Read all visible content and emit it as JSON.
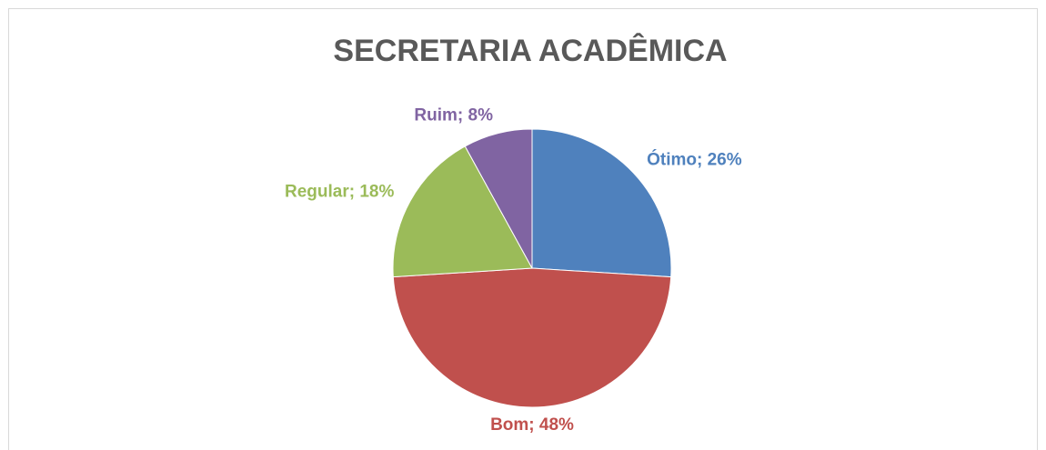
{
  "chart_data": {
    "type": "pie",
    "title": "SECRETARIA ACADÊMICA",
    "values": [
      26,
      48,
      18,
      8
    ],
    "value_labels": [
      "Ótimo; 26%",
      "Bom; 48%",
      "Regular; 18%",
      "Ruim; 8%"
    ],
    "colors": [
      "#4f81bd",
      "#c0504d",
      "#9bbb59",
      "#8064a2"
    ]
  }
}
